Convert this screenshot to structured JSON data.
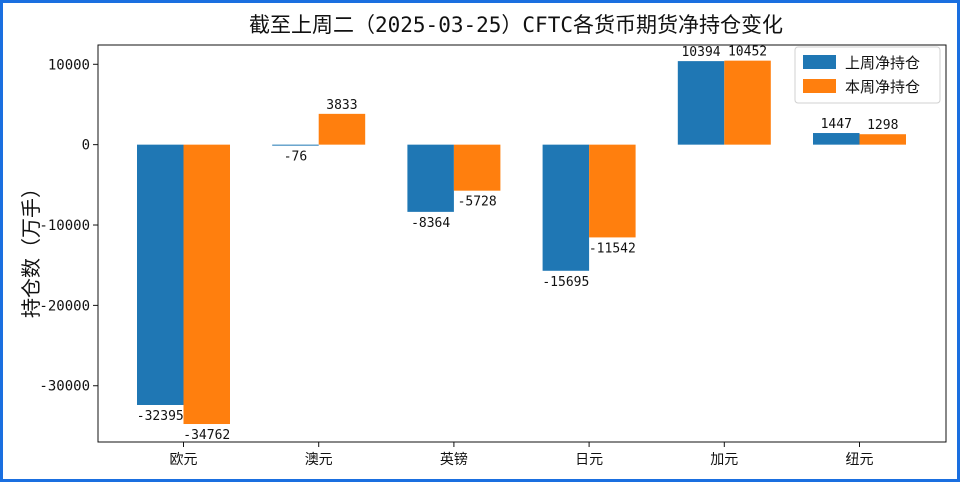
{
  "chart_data": {
    "type": "bar",
    "title": "截至上周二（2025-03-25）CFTC各货币期货净持仓变化",
    "xlabel": "",
    "ylabel": "持仓数（万手）",
    "categories": [
      "欧元",
      "澳元",
      "英镑",
      "日元",
      "加元",
      "纽元"
    ],
    "series": [
      {
        "name": "上周净持仓",
        "color": "#1f77b4",
        "values": [
          -32395,
          -76,
          -8364,
          -15695,
          10394,
          1447
        ]
      },
      {
        "name": "本周净持仓",
        "color": "#ff7f0e",
        "values": [
          -34762,
          3833,
          -5728,
          -11542,
          10452,
          1298
        ]
      }
    ],
    "yticks": [
      10000,
      0,
      -10000,
      -20000,
      -30000
    ],
    "ylim": [
      -37000,
      12400
    ],
    "grid": false,
    "legend_position": "top-right"
  }
}
